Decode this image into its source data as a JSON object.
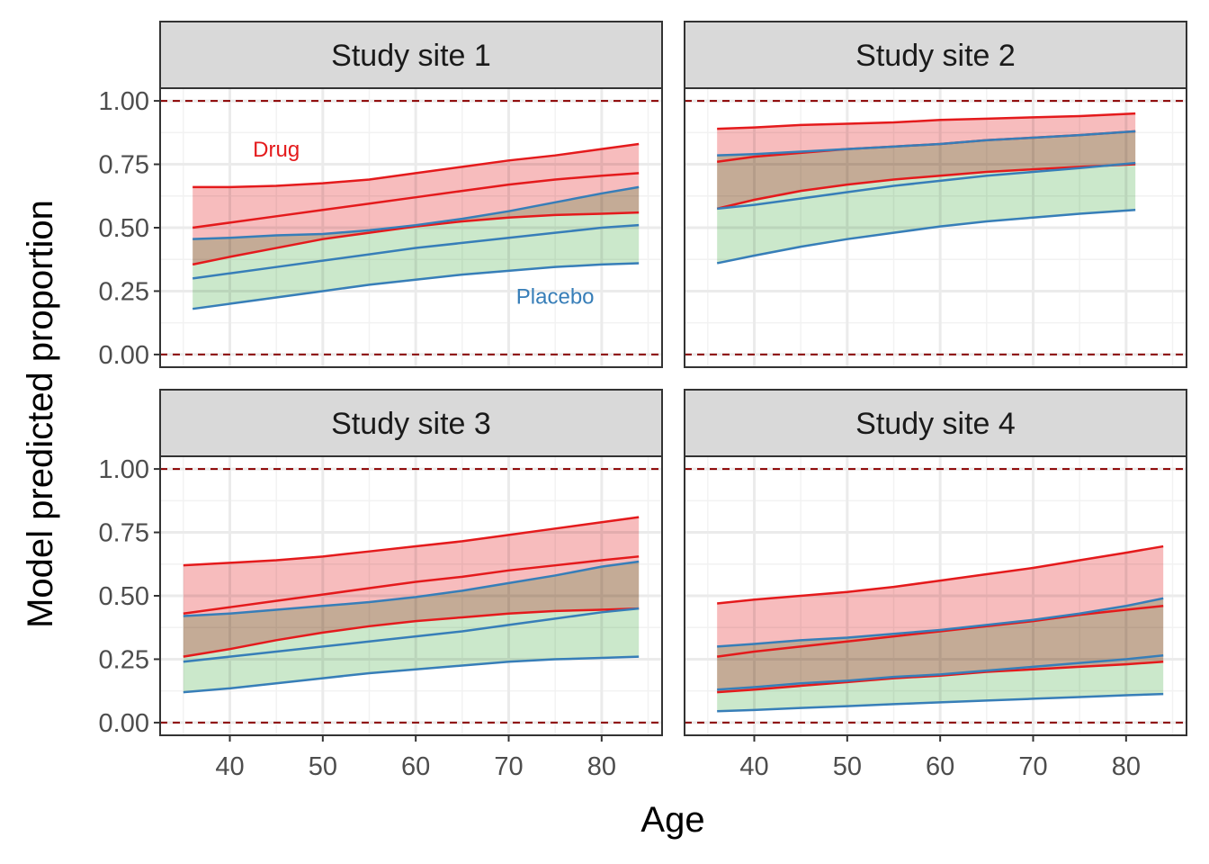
{
  "chart_data": {
    "type": "line",
    "xlabel": "Age",
    "ylabel": "Model predicted proportion",
    "xlim": [
      32.5,
      86.5
    ],
    "ylim": [
      -0.05,
      1.05
    ],
    "x_ticks": [
      40,
      50,
      60,
      70,
      80
    ],
    "x_tick_labels": [
      "40",
      "50",
      "60",
      "70",
      "80"
    ],
    "y_ticks": [
      0,
      0.25,
      0.5,
      0.75,
      1
    ],
    "y_tick_labels": [
      "0.00",
      "0.25",
      "0.50",
      "0.75",
      "1.00"
    ],
    "reference_lines": [
      0,
      1
    ],
    "grid": true,
    "colors": {
      "drug_line": "#e41a1c",
      "drug_fill": "#f4a6a7",
      "placebo_line": "#377eb8",
      "placebo_fill": "#b9e0b9",
      "reference": "#8b0000",
      "strip_bg": "#d9d9d9"
    },
    "annotations": [
      {
        "panel": 0,
        "text": "Drug",
        "x": 45,
        "y": 0.78,
        "series": "Drug"
      },
      {
        "panel": 0,
        "text": "Placebo",
        "x": 75,
        "y": 0.2,
        "series": "Placebo"
      }
    ],
    "panels": [
      {
        "title": "Study site 1",
        "series": [
          {
            "name": "Drug",
            "x": [
              36,
              40,
              45,
              50,
              55,
              60,
              65,
              70,
              75,
              80,
              84
            ],
            "fit": [
              0.5,
              0.52,
              0.545,
              0.57,
              0.595,
              0.62,
              0.645,
              0.67,
              0.69,
              0.705,
              0.715
            ],
            "lower": [
              0.355,
              0.385,
              0.42,
              0.455,
              0.48,
              0.505,
              0.525,
              0.54,
              0.55,
              0.555,
              0.56
            ],
            "upper": [
              0.66,
              0.66,
              0.665,
              0.675,
              0.69,
              0.715,
              0.74,
              0.765,
              0.785,
              0.81,
              0.83
            ]
          },
          {
            "name": "Placebo",
            "x": [
              36,
              40,
              45,
              50,
              55,
              60,
              65,
              70,
              75,
              80,
              84
            ],
            "fit": [
              0.3,
              0.32,
              0.345,
              0.37,
              0.395,
              0.42,
              0.44,
              0.46,
              0.48,
              0.5,
              0.51
            ],
            "lower": [
              0.18,
              0.2,
              0.225,
              0.25,
              0.275,
              0.295,
              0.315,
              0.33,
              0.345,
              0.355,
              0.36
            ],
            "upper": [
              0.455,
              0.46,
              0.47,
              0.475,
              0.49,
              0.51,
              0.535,
              0.565,
              0.6,
              0.635,
              0.66
            ]
          }
        ]
      },
      {
        "title": "Study site 2",
        "series": [
          {
            "name": "Drug",
            "x": [
              36,
              40,
              45,
              50,
              55,
              60,
              65,
              70,
              75,
              81
            ],
            "fit": [
              0.76,
              0.78,
              0.795,
              0.81,
              0.82,
              0.83,
              0.845,
              0.855,
              0.865,
              0.88
            ],
            "lower": [
              0.575,
              0.61,
              0.645,
              0.67,
              0.69,
              0.705,
              0.72,
              0.73,
              0.74,
              0.75
            ],
            "upper": [
              0.89,
              0.895,
              0.905,
              0.91,
              0.915,
              0.925,
              0.93,
              0.935,
              0.94,
              0.95
            ]
          },
          {
            "name": "Placebo",
            "x": [
              36,
              40,
              45,
              50,
              55,
              60,
              65,
              70,
              75,
              81
            ],
            "fit": [
              0.575,
              0.59,
              0.615,
              0.64,
              0.665,
              0.685,
              0.705,
              0.72,
              0.735,
              0.755
            ],
            "lower": [
              0.36,
              0.39,
              0.425,
              0.455,
              0.48,
              0.505,
              0.525,
              0.54,
              0.555,
              0.57
            ],
            "upper": [
              0.785,
              0.79,
              0.8,
              0.81,
              0.82,
              0.83,
              0.845,
              0.855,
              0.865,
              0.88
            ]
          }
        ]
      },
      {
        "title": "Study site 3",
        "series": [
          {
            "name": "Drug",
            "x": [
              35,
              40,
              45,
              50,
              55,
              60,
              65,
              70,
              75,
              80,
              84
            ],
            "fit": [
              0.43,
              0.455,
              0.48,
              0.505,
              0.53,
              0.555,
              0.575,
              0.6,
              0.62,
              0.64,
              0.655
            ],
            "lower": [
              0.26,
              0.29,
              0.325,
              0.355,
              0.38,
              0.4,
              0.415,
              0.43,
              0.44,
              0.445,
              0.45
            ],
            "upper": [
              0.62,
              0.63,
              0.64,
              0.655,
              0.675,
              0.695,
              0.715,
              0.74,
              0.765,
              0.79,
              0.81
            ]
          },
          {
            "name": "Placebo",
            "x": [
              35,
              40,
              45,
              50,
              55,
              60,
              65,
              70,
              75,
              80,
              84
            ],
            "fit": [
              0.24,
              0.26,
              0.28,
              0.3,
              0.32,
              0.34,
              0.36,
              0.385,
              0.41,
              0.435,
              0.45
            ],
            "lower": [
              0.12,
              0.135,
              0.155,
              0.175,
              0.195,
              0.21,
              0.225,
              0.24,
              0.25,
              0.255,
              0.26
            ],
            "upper": [
              0.42,
              0.43,
              0.445,
              0.46,
              0.475,
              0.495,
              0.52,
              0.55,
              0.58,
              0.615,
              0.635
            ]
          }
        ]
      },
      {
        "title": "Study site 4",
        "series": [
          {
            "name": "Drug",
            "x": [
              36,
              40,
              45,
              50,
              55,
              60,
              65,
              70,
              75,
              80,
              84
            ],
            "fit": [
              0.26,
              0.28,
              0.3,
              0.32,
              0.34,
              0.36,
              0.38,
              0.4,
              0.425,
              0.445,
              0.46
            ],
            "lower": [
              0.12,
              0.13,
              0.145,
              0.16,
              0.175,
              0.185,
              0.2,
              0.21,
              0.22,
              0.23,
              0.24
            ],
            "upper": [
              0.47,
              0.485,
              0.5,
              0.515,
              0.535,
              0.56,
              0.585,
              0.61,
              0.64,
              0.67,
              0.695
            ]
          },
          {
            "name": "Placebo",
            "x": [
              36,
              40,
              45,
              50,
              55,
              60,
              65,
              70,
              75,
              80,
              84
            ],
            "fit": [
              0.13,
              0.14,
              0.155,
              0.165,
              0.18,
              0.19,
              0.205,
              0.22,
              0.235,
              0.25,
              0.265
            ],
            "lower": [
              0.045,
              0.05,
              0.058,
              0.065,
              0.073,
              0.08,
              0.087,
              0.094,
              0.101,
              0.108,
              0.113
            ],
            "upper": [
              0.3,
              0.31,
              0.325,
              0.335,
              0.35,
              0.365,
              0.385,
              0.405,
              0.43,
              0.46,
              0.49
            ]
          }
        ]
      }
    ]
  }
}
